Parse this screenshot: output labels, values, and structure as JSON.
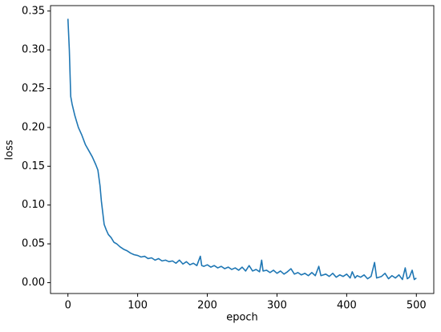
{
  "chart_data": {
    "type": "line",
    "x_label": "epoch",
    "y_label": "loss",
    "color": "#1f77b4",
    "x": [
      0,
      2,
      4,
      6,
      10,
      15,
      20,
      25,
      30,
      35,
      40,
      43,
      46,
      48,
      50,
      52,
      55,
      58,
      62,
      66,
      70,
      75,
      80,
      85,
      90,
      95,
      100,
      105,
      110,
      115,
      120,
      125,
      130,
      135,
      140,
      145,
      150,
      155,
      160,
      165,
      170,
      175,
      180,
      185,
      190,
      192,
      195,
      200,
      205,
      210,
      215,
      220,
      225,
      230,
      235,
      240,
      245,
      250,
      255,
      260,
      265,
      270,
      275,
      278,
      280,
      285,
      290,
      295,
      300,
      305,
      310,
      315,
      320,
      325,
      330,
      335,
      340,
      345,
      350,
      355,
      360,
      363,
      370,
      375,
      380,
      385,
      390,
      395,
      400,
      405,
      408,
      412,
      415,
      420,
      425,
      430,
      435,
      440,
      443,
      450,
      455,
      460,
      465,
      470,
      475,
      480,
      484,
      487,
      490,
      494,
      497,
      500
    ],
    "values": [
      0.34,
      0.3,
      0.24,
      0.23,
      0.215,
      0.2,
      0.19,
      0.178,
      0.17,
      0.162,
      0.152,
      0.145,
      0.125,
      0.105,
      0.09,
      0.075,
      0.068,
      0.062,
      0.058,
      0.052,
      0.05,
      0.046,
      0.043,
      0.041,
      0.038,
      0.036,
      0.035,
      0.033,
      0.034,
      0.031,
      0.032,
      0.029,
      0.031,
      0.028,
      0.029,
      0.027,
      0.028,
      0.025,
      0.029,
      0.024,
      0.027,
      0.023,
      0.025,
      0.022,
      0.034,
      0.022,
      0.021,
      0.023,
      0.02,
      0.022,
      0.019,
      0.021,
      0.018,
      0.02,
      0.017,
      0.019,
      0.016,
      0.02,
      0.015,
      0.022,
      0.015,
      0.017,
      0.014,
      0.029,
      0.015,
      0.016,
      0.013,
      0.016,
      0.012,
      0.015,
      0.011,
      0.014,
      0.018,
      0.011,
      0.013,
      0.01,
      0.012,
      0.009,
      0.013,
      0.009,
      0.021,
      0.009,
      0.011,
      0.008,
      0.012,
      0.007,
      0.01,
      0.008,
      0.011,
      0.006,
      0.014,
      0.006,
      0.009,
      0.007,
      0.01,
      0.005,
      0.008,
      0.026,
      0.006,
      0.008,
      0.012,
      0.005,
      0.009,
      0.006,
      0.01,
      0.004,
      0.019,
      0.005,
      0.007,
      0.016,
      0.004,
      0.006
    ],
    "xlim": [
      -25,
      525
    ],
    "ylim": [
      -0.014,
      0.357
    ],
    "xticks": [
      0,
      100,
      200,
      300,
      400,
      500
    ],
    "yticks": [
      {
        "value": 0,
        "label": "0.00"
      },
      {
        "value": 0.05,
        "label": "0.05"
      },
      {
        "value": 0.1,
        "label": "0.10"
      },
      {
        "value": 0.15,
        "label": "0.15"
      },
      {
        "value": 0.2,
        "label": "0.20"
      },
      {
        "value": 0.25,
        "label": "0.25"
      },
      {
        "value": 0.3,
        "label": "0.30"
      },
      {
        "value": 0.35,
        "label": "0.35"
      }
    ],
    "grid": false
  }
}
